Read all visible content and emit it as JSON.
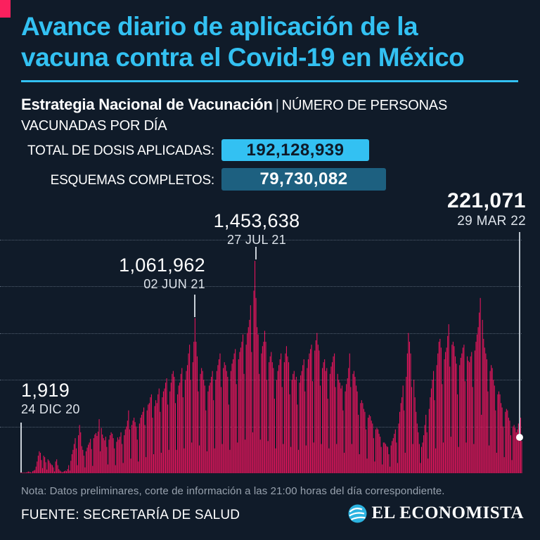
{
  "header": {
    "title_line1": "Avance diario de aplicación de la",
    "title_line2": "vacuna contra el Covid-19 en México",
    "subtitle_bold": "Estrategia Nacional de Vacunación",
    "subtitle_sep": "|",
    "subtitle_regular_line1": "NÚMERO DE PERSONAS",
    "subtitle_line2": "VACUNADAS POR DÍA"
  },
  "stats": {
    "total_label": "TOTAL DE DOSIS APLICADAS:",
    "total_value": "192,128,939",
    "complete_label": "ESQUEMAS COMPLETOS:",
    "complete_value": "79,730,082"
  },
  "chart_data": {
    "type": "bar",
    "title": "Número de personas vacunadas por día",
    "x_start": "24 DIC 20",
    "x_end": "29 MAR 22",
    "ylim": [
      0,
      1453638
    ],
    "grid": "5 dotted horizontal gridlines, unlabeled",
    "legend": "none",
    "unit": "personas vacunadas por día; values_thousands = miles de personas (estimado de la gráfica, diario)",
    "annotations": [
      {
        "value": "1,919",
        "date": "24 DIC 20"
      },
      {
        "value": "1,061,962",
        "date": "02 JUN 21"
      },
      {
        "value": "1,453,638",
        "date": "27 JUL 21"
      },
      {
        "value": "221,071",
        "date": "29 MAR 22"
      }
    ],
    "values_thousands": [
      2,
      1,
      1,
      2,
      3,
      5,
      8,
      12,
      10,
      6,
      4,
      14,
      18,
      22,
      45,
      80,
      120,
      150,
      140,
      90,
      35,
      120,
      110,
      75,
      25,
      95,
      85,
      70,
      60,
      55,
      40,
      12,
      80,
      95,
      55,
      28,
      18,
      12,
      6,
      10,
      14,
      18,
      14,
      28,
      55,
      18,
      85,
      130,
      160,
      200,
      240,
      170,
      55,
      260,
      330,
      280,
      185,
      160,
      120,
      40,
      150,
      175,
      195,
      210,
      235,
      165,
      50,
      240,
      265,
      275,
      255,
      285,
      370,
      150,
      310,
      265,
      240,
      225,
      250,
      180,
      60,
      230,
      260,
      280,
      270,
      240,
      170,
      55,
      215,
      245,
      230,
      250,
      280,
      200,
      70,
      260,
      300,
      320,
      360,
      430,
      300,
      100,
      330,
      360,
      380,
      350,
      320,
      230,
      80,
      340,
      380,
      400,
      420,
      450,
      330,
      110,
      430,
      470,
      480,
      520,
      540,
      380,
      130,
      460,
      500,
      480,
      540,
      580,
      420,
      140,
      520,
      560,
      580,
      620,
      650,
      470,
      160,
      560,
      620,
      680,
      700,
      660,
      480,
      160,
      540,
      600,
      620,
      680,
      720,
      520,
      170,
      640,
      700,
      740,
      820,
      880,
      640,
      210,
      760,
      900,
      1062,
      900,
      800,
      560,
      190,
      680,
      720,
      700,
      640,
      600,
      430,
      150,
      560,
      600,
      620,
      660,
      700,
      500,
      170,
      640,
      700,
      740,
      780,
      820,
      590,
      200,
      720,
      760,
      740,
      700,
      660,
      470,
      160,
      700,
      750,
      780,
      820,
      850,
      610,
      210,
      780,
      830,
      860,
      900,
      950,
      680,
      230,
      880,
      960,
      1000,
      1050,
      1150,
      830,
      280,
      1250,
      1454,
      1200,
      1000,
      950,
      680,
      230,
      820,
      870,
      900,
      975,
      900,
      640,
      220,
      760,
      800,
      830,
      760,
      720,
      510,
      170,
      640,
      700,
      740,
      780,
      820,
      590,
      200,
      760,
      820,
      870,
      800,
      760,
      540,
      180,
      640,
      680,
      700,
      640,
      660,
      470,
      160,
      620,
      670,
      700,
      740,
      780,
      560,
      190,
      720,
      780,
      820,
      850,
      880,
      630,
      210,
      840,
      910,
      960,
      880,
      840,
      600,
      200,
      720,
      760,
      780,
      700,
      720,
      510,
      170,
      680,
      730,
      760,
      800,
      820,
      590,
      200,
      680,
      640,
      620,
      580,
      600,
      430,
      140,
      560,
      610,
      650,
      720,
      820,
      590,
      200,
      680,
      700,
      660,
      600,
      560,
      400,
      130,
      480,
      500,
      480,
      440,
      420,
      300,
      100,
      380,
      400,
      390,
      360,
      340,
      240,
      80,
      300,
      310,
      300,
      270,
      250,
      180,
      60,
      210,
      210,
      200,
      185,
      180,
      130,
      45,
      190,
      220,
      240,
      270,
      300,
      210,
      70,
      340,
      420,
      480,
      520,
      600,
      430,
      140,
      660,
      820,
      960,
      900,
      820,
      590,
      200,
      640,
      520,
      420,
      340,
      280,
      200,
      70,
      180,
      210,
      260,
      330,
      400,
      280,
      100,
      440,
      520,
      580,
      640,
      700,
      500,
      170,
      740,
      820,
      900,
      920,
      860,
      610,
      210,
      780,
      830,
      860,
      940,
      1020,
      730,
      250,
      880,
      900,
      870,
      800,
      750,
      540,
      180,
      740,
      790,
      820,
      860,
      880,
      630,
      210,
      800,
      770,
      760,
      800,
      830,
      590,
      200,
      840,
      900,
      950,
      1000,
      1100,
      1200,
      400,
      1050,
      920,
      860,
      820,
      780,
      560,
      190,
      700,
      740,
      720,
      640,
      600,
      430,
      140,
      540,
      560,
      540,
      480,
      450,
      320,
      110,
      420,
      440,
      430,
      380,
      360,
      260,
      90,
      320,
      330,
      310,
      280,
      300,
      340,
      300,
      380,
      221
    ]
  },
  "footer": {
    "note": "Nota: Datos preliminares, corte de información a las 21:00 horas del día correspondiente.",
    "source": "FUENTE: SECRETARÍA DE SALUD",
    "brand": "EL ECONOMISTA"
  },
  "colors": {
    "background": "#101b29",
    "accent_cyan": "#33c1f2",
    "accent_pink": "#fb205e",
    "bar_pink": "#e6155c",
    "badge_teal": "#1d6080",
    "note_gray": "#98a2ae",
    "text_white": "#ffffff"
  }
}
